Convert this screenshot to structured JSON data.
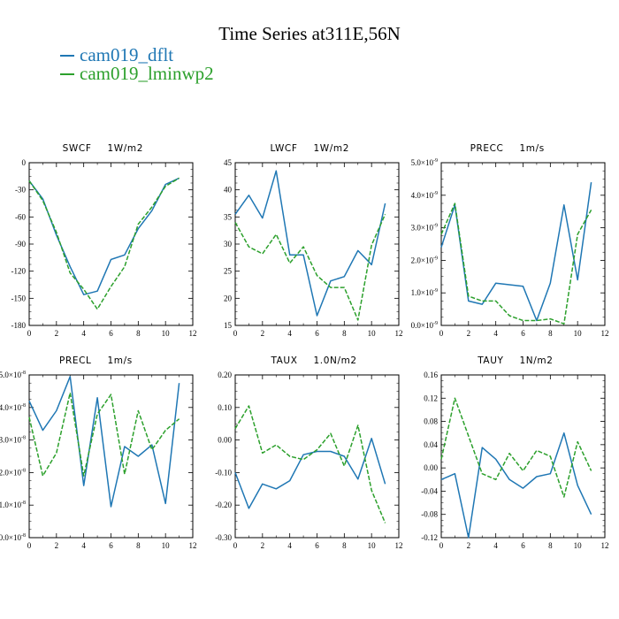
{
  "title": "Time Series at311E,56N",
  "legend": [
    {
      "label": "cam019_dflt",
      "color": "#1f77b4"
    },
    {
      "label": "cam019_lminwp2",
      "color": "#2ca02c"
    }
  ],
  "chart_data": [
    {
      "type": "line",
      "title": "SWCF",
      "units": "1W/m2",
      "xlim": [
        0,
        12
      ],
      "ylim": [
        -180,
        0
      ],
      "xticks": [
        "0",
        "2",
        "4",
        "6",
        "8",
        "10",
        "12"
      ],
      "yticks": [
        "0",
        "-30",
        "-60",
        "-90",
        "-120",
        "-150",
        "-180"
      ],
      "x": [
        0,
        1,
        2,
        3,
        4,
        5,
        6,
        7,
        8,
        9,
        10,
        11
      ],
      "series": [
        {
          "name": "cam019_dflt",
          "values": [
            -20,
            -40,
            -80,
            -115,
            -146,
            -142,
            -107,
            -102,
            -73,
            -53,
            -24,
            -17
          ]
        },
        {
          "name": "cam019_lminwp2",
          "values": [
            -20,
            -42,
            -77,
            -122,
            -140,
            -162,
            -137,
            -115,
            -68,
            -49,
            -26,
            -17
          ]
        }
      ]
    },
    {
      "type": "line",
      "title": "LWCF",
      "units": "1W/m2",
      "xlim": [
        0,
        12
      ],
      "ylim": [
        15,
        45
      ],
      "xticks": [
        "0",
        "2",
        "4",
        "6",
        "8",
        "10",
        "12"
      ],
      "yticks": [
        "45",
        "40",
        "35",
        "30",
        "25",
        "20",
        "15"
      ],
      "x": [
        0,
        1,
        2,
        3,
        4,
        5,
        6,
        7,
        8,
        9,
        10,
        11
      ],
      "series": [
        {
          "name": "cam019_dflt",
          "values": [
            35.5,
            39,
            34.8,
            43.5,
            28,
            28,
            16.8,
            23.2,
            24,
            28.8,
            26.2,
            37.5
          ]
        },
        {
          "name": "cam019_lminwp2",
          "values": [
            34,
            29.5,
            28.2,
            31.8,
            26.5,
            29.5,
            24.2,
            22,
            22,
            16,
            29.8,
            35.5
          ]
        }
      ]
    },
    {
      "type": "line",
      "title": "PRECC",
      "units": "1m/s",
      "xlim": [
        0,
        12
      ],
      "ylim": [
        0,
        5
      ],
      "yexp": "-9",
      "xticks": [
        "0",
        "2",
        "4",
        "6",
        "8",
        "10",
        "12"
      ],
      "yticks": [
        "5.0",
        "4.0",
        "3.0",
        "2.0",
        "1.0",
        "0.0"
      ],
      "x": [
        0,
        1,
        2,
        3,
        4,
        5,
        6,
        7,
        8,
        9,
        10,
        11
      ],
      "series": [
        {
          "name": "cam019_dflt",
          "values": [
            2.4,
            3.7,
            0.75,
            0.65,
            1.3,
            1.25,
            1.2,
            0.15,
            1.3,
            3.7,
            1.4,
            4.4
          ]
        },
        {
          "name": "cam019_lminwp2",
          "values": [
            2.8,
            3.75,
            0.9,
            0.75,
            0.75,
            0.3,
            0.15,
            0.15,
            0.2,
            0.05,
            2.8,
            3.55
          ]
        }
      ]
    },
    {
      "type": "line",
      "title": "PRECL",
      "units": "1m/s",
      "xlim": [
        0,
        12
      ],
      "ylim": [
        0,
        5
      ],
      "yexp": "-8",
      "xticks": [
        "0",
        "2",
        "4",
        "6",
        "8",
        "10",
        "12"
      ],
      "yticks": [
        "5.0",
        "4.0",
        "3.0",
        "2.0",
        "1.0",
        "0.0"
      ],
      "x": [
        0,
        1,
        2,
        3,
        4,
        5,
        6,
        7,
        8,
        9,
        10,
        11
      ],
      "series": [
        {
          "name": "cam019_dflt",
          "values": [
            4.2,
            3.3,
            3.9,
            4.95,
            1.6,
            4.3,
            0.95,
            2.8,
            2.5,
            2.85,
            1.05,
            4.75
          ]
        },
        {
          "name": "cam019_lminwp2",
          "values": [
            3.7,
            1.9,
            2.6,
            4.45,
            1.9,
            3.8,
            4.4,
            1.95,
            3.9,
            2.7,
            3.3,
            3.65
          ]
        }
      ]
    },
    {
      "type": "line",
      "title": "TAUX",
      "units": "1.0N/m2",
      "xlim": [
        0,
        12
      ],
      "ylim": [
        -0.3,
        0.2
      ],
      "xticks": [
        "0",
        "2",
        "4",
        "6",
        "8",
        "10",
        "12"
      ],
      "yticks": [
        "0.20",
        "0.10",
        "0.00",
        "-0.10",
        "-0.20",
        "-0.30"
      ],
      "x": [
        0,
        1,
        2,
        3,
        4,
        5,
        6,
        7,
        8,
        9,
        10,
        11
      ],
      "series": [
        {
          "name": "cam019_dflt",
          "values": [
            -0.1,
            -0.21,
            -0.135,
            -0.15,
            -0.125,
            -0.045,
            -0.035,
            -0.035,
            -0.05,
            -0.12,
            0.005,
            -0.135
          ]
        },
        {
          "name": "cam019_lminwp2",
          "values": [
            0.035,
            0.105,
            -0.04,
            -0.015,
            -0.05,
            -0.06,
            -0.03,
            0.02,
            -0.08,
            0.045,
            -0.155,
            -0.255
          ]
        }
      ]
    },
    {
      "type": "line",
      "title": "TAUY",
      "units": "1N/m2",
      "xlim": [
        0,
        12
      ],
      "ylim": [
        -0.12,
        0.16
      ],
      "xticks": [
        "0",
        "2",
        "4",
        "6",
        "8",
        "10",
        "12"
      ],
      "yticks": [
        "0.16",
        "0.12",
        "0.08",
        "0.04",
        "0.00",
        "-0.04",
        "-0.08",
        "-0.12"
      ],
      "x": [
        0,
        1,
        2,
        3,
        4,
        5,
        6,
        7,
        8,
        9,
        10,
        11
      ],
      "series": [
        {
          "name": "cam019_dflt",
          "values": [
            -0.02,
            -0.01,
            -0.12,
            0.035,
            0.015,
            -0.02,
            -0.035,
            -0.015,
            -0.01,
            0.06,
            -0.03,
            -0.08
          ]
        },
        {
          "name": "cam019_lminwp2",
          "values": [
            0.015,
            0.12,
            0.055,
            -0.01,
            -0.02,
            0.025,
            -0.005,
            0.03,
            0.02,
            -0.05,
            0.045,
            -0.005
          ]
        }
      ]
    }
  ]
}
